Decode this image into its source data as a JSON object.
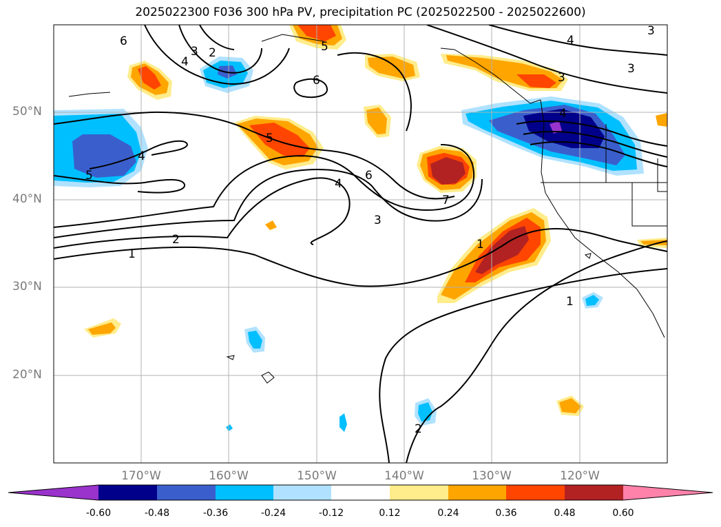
{
  "title": "2025022300 F036 300 hPa PV, precipitation PC (2025022500 - 2025022600)",
  "latitude_labels": [
    "50°N",
    "40°N",
    "30°N",
    "20°N"
  ],
  "longitude_labels": [
    "170°W",
    "160°W",
    "150°W",
    "140°W",
    "130°W",
    "120°W"
  ],
  "contour_labels": [
    "6",
    "3",
    "2",
    "4",
    "5",
    "6",
    "4",
    "3",
    "3",
    "3",
    "5",
    "4",
    "6",
    "7",
    "4",
    "3",
    "1",
    "2",
    "1",
    "5",
    "4",
    "1",
    "2"
  ],
  "colorbar": {
    "ticks": [
      "-0.60",
      "-0.48",
      "-0.36",
      "-0.24",
      "-0.12",
      "0.12",
      "0.24",
      "0.36",
      "0.48",
      "0.60"
    ],
    "colors": [
      "#9933cc",
      "#00008b",
      "#3a5fcd",
      "#00bfff",
      "#b0e2ff",
      "#ffffff",
      "#ffec8b",
      "#ffa500",
      "#ff4500",
      "#b22222",
      "#ff82ab"
    ]
  }
}
